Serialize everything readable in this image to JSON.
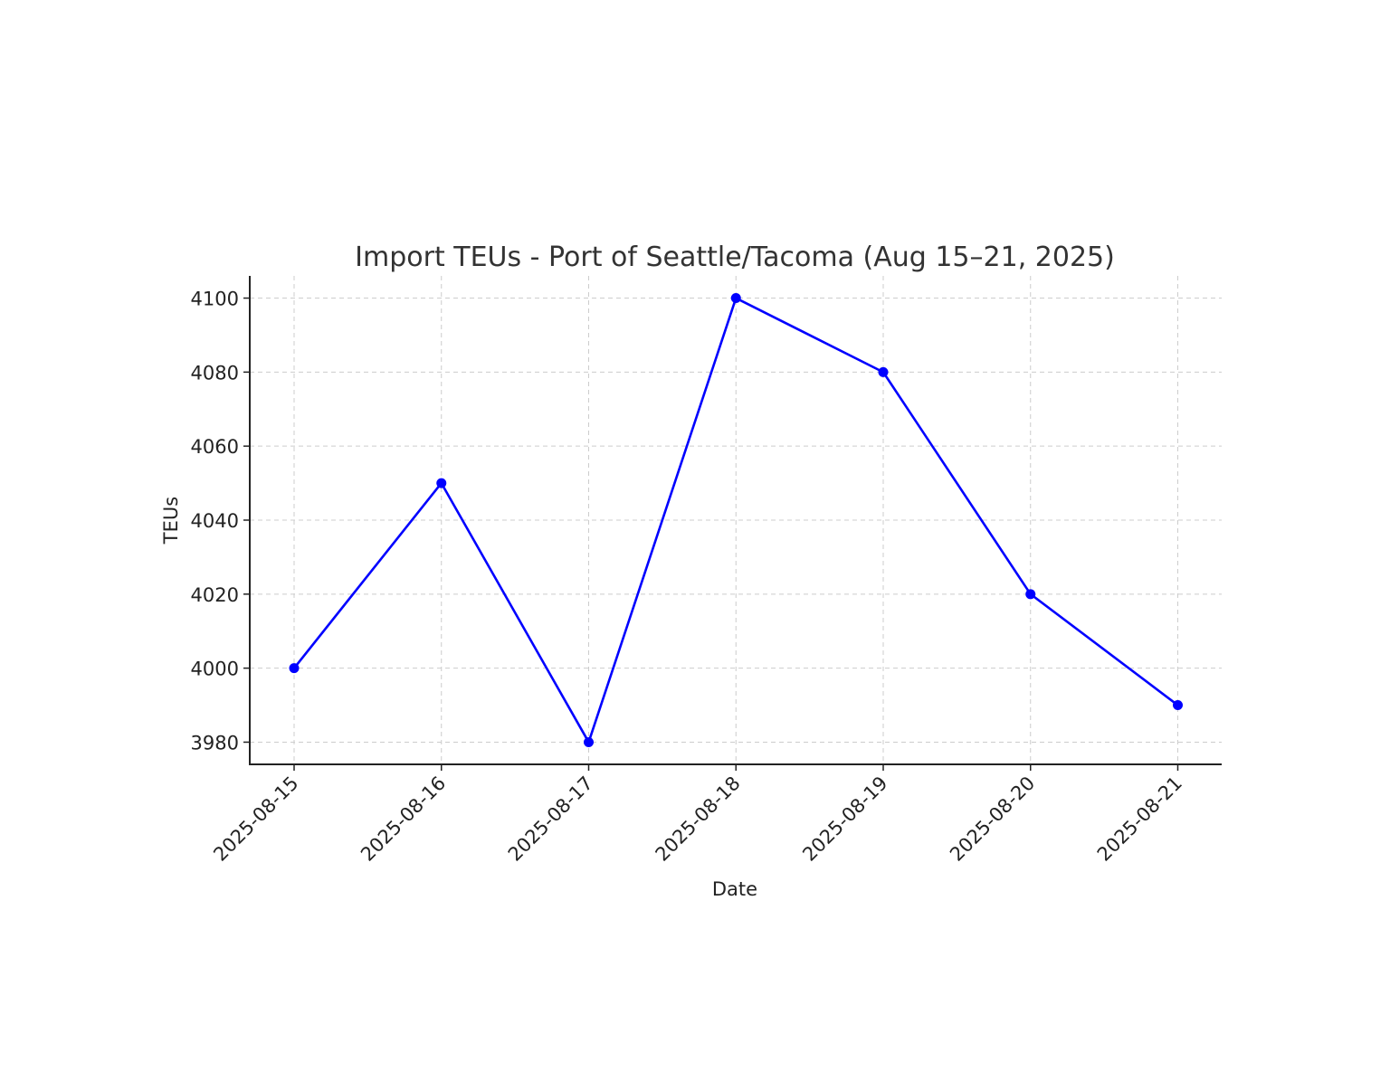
{
  "chart_data": {
    "type": "line",
    "title": "Import TEUs - Port of Seattle/Tacoma (Aug 15–21, 2025)",
    "xlabel": "Date",
    "ylabel": "TEUs",
    "categories": [
      "2025-08-15",
      "2025-08-16",
      "2025-08-17",
      "2025-08-18",
      "2025-08-19",
      "2025-08-20",
      "2025-08-21"
    ],
    "series": [
      {
        "values": [
          4000,
          4050,
          3980,
          4100,
          4080,
          4020,
          3990
        ],
        "color": "#0000ff",
        "marker": "circle"
      }
    ],
    "yticks": [
      3980,
      4000,
      4020,
      4040,
      4060,
      4080,
      4100
    ],
    "ylim": [
      3974,
      4106
    ],
    "grid": true,
    "x_tick_rotation": -45
  }
}
